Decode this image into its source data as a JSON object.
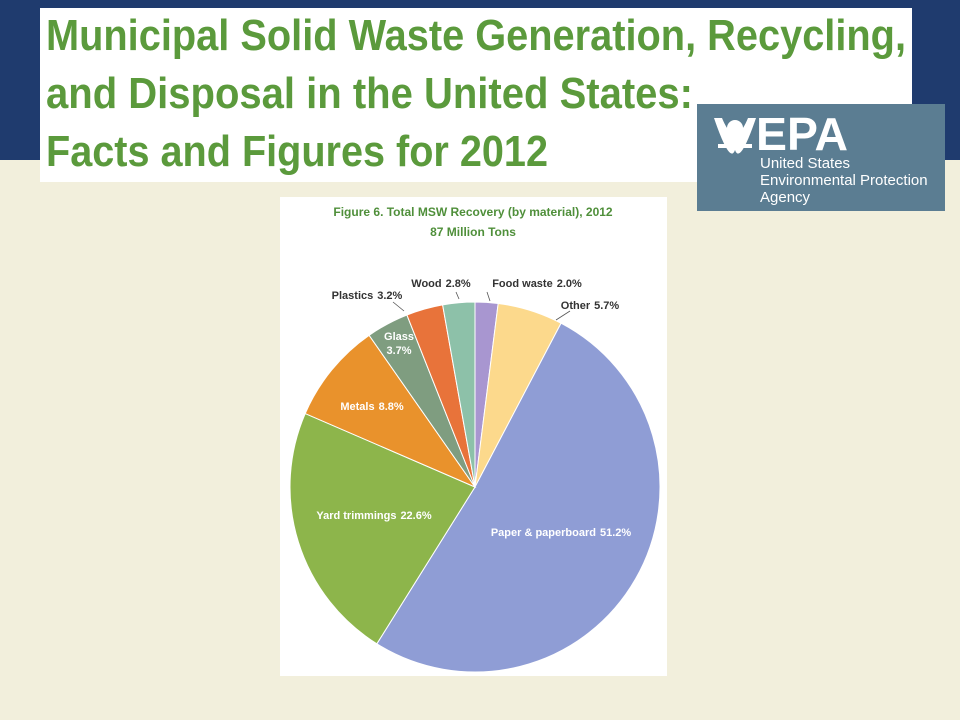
{
  "slide": {
    "title": [
      "Municipal Solid Waste Generation, Recycling,",
      "and Disposal in the United States:",
      "Facts and Figures for 2012"
    ]
  },
  "logo": {
    "name": "EPA",
    "agency": [
      "United States",
      "Environmental Protection",
      "Agency"
    ]
  },
  "chart_data": {
    "type": "pie",
    "title": "Figure 6. Total MSW Recovery (by material), 2012",
    "subtitle": "87 Million Tons",
    "categories": [
      "Food waste",
      "Other",
      "Paper & paperboard",
      "Yard trimmings",
      "Metals",
      "Glass",
      "Plastics",
      "Wood"
    ],
    "values": [
      2.0,
      5.7,
      51.2,
      22.6,
      8.8,
      3.7,
      3.2,
      2.8
    ],
    "value_labels": [
      "2.0%",
      "5.7%",
      "51.2%",
      "22.6%",
      "8.8%",
      "3.7%",
      "3.2%",
      "2.8%"
    ],
    "colors": [
      "#a896d0",
      "#fcd98c",
      "#8f9dd5",
      "#8db54b",
      "#e9922c",
      "#7f9d80",
      "#e8733a",
      "#8dc1a9"
    ]
  }
}
